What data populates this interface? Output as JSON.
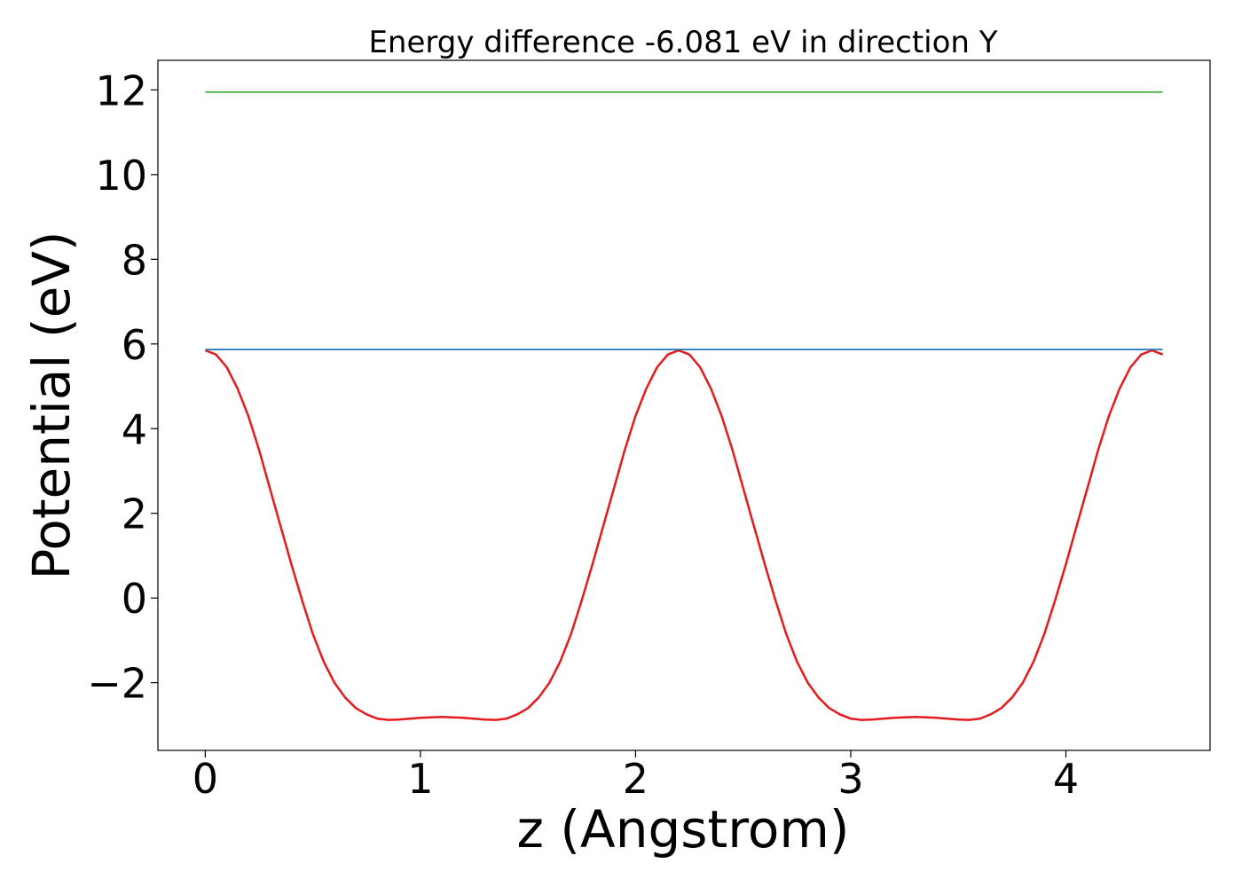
{
  "chart_data": {
    "type": "line",
    "title": "Energy difference -6.081 eV in direction Y",
    "xlabel": "z (Angstrom)",
    "ylabel": "Potential (eV)",
    "xlim": [
      -0.22,
      4.67
    ],
    "ylim": [
      -3.6,
      12.7
    ],
    "xticks": [
      0,
      1,
      2,
      3,
      4
    ],
    "yticks": [
      -2,
      0,
      2,
      4,
      6,
      8,
      10,
      12
    ],
    "xtick_labels": [
      "0",
      "1",
      "2",
      "3",
      "4"
    ],
    "ytick_labels": [
      "−2",
      "0",
      "2",
      "4",
      "6",
      "8",
      "10",
      "12"
    ],
    "grid": false,
    "series": [
      {
        "color": "#e41a1c",
        "x": [
          0.0,
          0.05,
          0.1,
          0.15,
          0.2,
          0.25,
          0.3,
          0.35,
          0.4,
          0.45,
          0.5,
          0.55,
          0.6,
          0.65,
          0.7,
          0.75,
          0.8,
          0.85,
          0.9,
          0.95,
          1.0,
          1.05,
          1.1,
          1.15,
          1.2,
          1.25,
          1.3,
          1.35,
          1.4,
          1.45,
          1.5,
          1.55,
          1.6,
          1.65,
          1.7,
          1.75,
          1.8,
          1.85,
          1.9,
          1.95,
          2.0,
          2.05,
          2.1,
          2.15,
          2.2,
          2.25,
          2.3,
          2.35,
          2.4,
          2.45,
          2.5,
          2.55,
          2.6,
          2.65,
          2.7,
          2.75,
          2.8,
          2.85,
          2.9,
          2.95,
          3.0,
          3.05,
          3.1,
          3.15,
          3.2,
          3.25,
          3.3,
          3.35,
          3.4,
          3.45,
          3.5,
          3.55,
          3.6,
          3.65,
          3.7,
          3.75,
          3.8,
          3.85,
          3.9,
          3.95,
          4.0,
          4.05,
          4.1,
          4.15,
          4.2,
          4.25,
          4.3,
          4.35,
          4.4,
          4.45
        ],
        "y": [
          5.85,
          5.75,
          5.45,
          4.95,
          4.3,
          3.5,
          2.6,
          1.7,
          0.8,
          -0.05,
          -0.85,
          -1.5,
          -2.0,
          -2.35,
          -2.6,
          -2.75,
          -2.85,
          -2.88,
          -2.87,
          -2.85,
          -2.83,
          -2.82,
          -2.81,
          -2.82,
          -2.83,
          -2.85,
          -2.87,
          -2.88,
          -2.85,
          -2.75,
          -2.6,
          -2.35,
          -2.0,
          -1.5,
          -0.85,
          -0.05,
          0.8,
          1.7,
          2.6,
          3.5,
          4.3,
          4.95,
          5.45,
          5.75,
          5.85,
          5.75,
          5.45,
          4.95,
          4.3,
          3.5,
          2.6,
          1.7,
          0.8,
          -0.05,
          -0.85,
          -1.5,
          -2.0,
          -2.35,
          -2.6,
          -2.75,
          -2.85,
          -2.88,
          -2.87,
          -2.85,
          -2.83,
          -2.82,
          -2.81,
          -2.82,
          -2.83,
          -2.85,
          -2.87,
          -2.88,
          -2.85,
          -2.75,
          -2.6,
          -2.35,
          -2.0,
          -1.5,
          -0.85,
          -0.05,
          0.8,
          1.7,
          2.6,
          3.5,
          4.3,
          4.95,
          5.45,
          5.75,
          5.85,
          5.75
        ]
      },
      {
        "color": "#1f77b4",
        "x": [
          0.0,
          4.45
        ],
        "y": [
          5.87,
          5.87
        ]
      },
      {
        "color": "#4daf4a",
        "x": [
          0.0,
          4.45
        ],
        "y": [
          11.95,
          11.95
        ]
      }
    ]
  }
}
